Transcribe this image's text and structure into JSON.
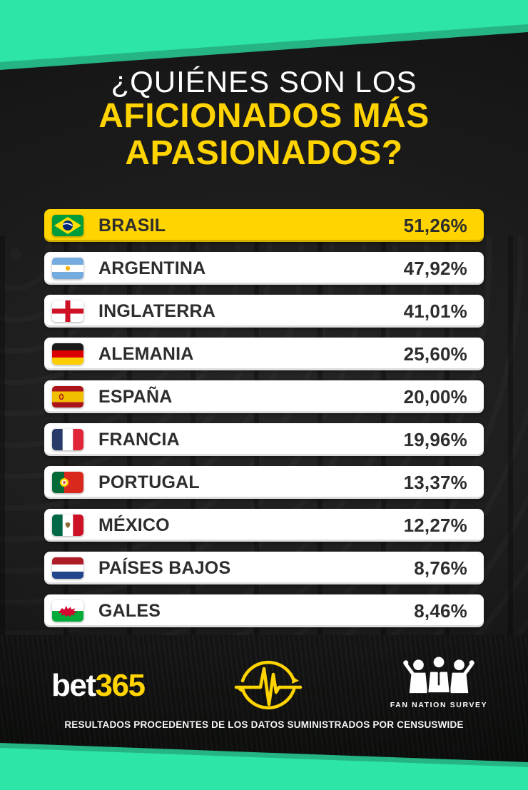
{
  "title": {
    "line1": "¿QUIÉNES SON LOS",
    "line2": "AFICIONADOS MÁS",
    "line3": "APASIONADOS?"
  },
  "chart_data": {
    "type": "bar",
    "title": "¿Quiénes son los aficionados más apasionados?",
    "categories": [
      "BRASIL",
      "ARGENTINA",
      "INGLATERRA",
      "ALEMANIA",
      "ESPAÑA",
      "FRANCIA",
      "PORTUGAL",
      "MÉXICO",
      "PAÍSES BAJOS",
      "GALES"
    ],
    "values": [
      51.26,
      47.92,
      41.01,
      25.6,
      20.0,
      19.96,
      13.37,
      12.27,
      8.76,
      8.46
    ],
    "values_display": [
      "51,26%",
      "47,92%",
      "41,01%",
      "25,60%",
      "20,00%",
      "19,96%",
      "13,37%",
      "12,27%",
      "8,76%",
      "8,46%"
    ],
    "flags": [
      "brazil",
      "argentina",
      "england",
      "germany",
      "spain",
      "france",
      "portugal",
      "mexico",
      "netherlands",
      "wales"
    ],
    "highlight_index": 0,
    "unit": "percent",
    "source": "Resultados procedentes de los datos suministrados por Censuswide"
  },
  "footer": {
    "brand": {
      "part1": "bet",
      "part2": "365"
    },
    "pulse_icon": "heartbeat-pulse-icon",
    "survey_label": "FAN NATION SURVEY",
    "disclaimer": "RESULTADOS PROCEDENTES DE LOS DATOS SUMINISTRADOS POR CENSUSWIDE"
  },
  "colors": {
    "teal": "#2ce5a7",
    "teal_shadow": "#25b483",
    "yellow": "#ffd400",
    "row_background": "#ffffff",
    "row_text": "#2d2d2d",
    "background": "#161616"
  }
}
